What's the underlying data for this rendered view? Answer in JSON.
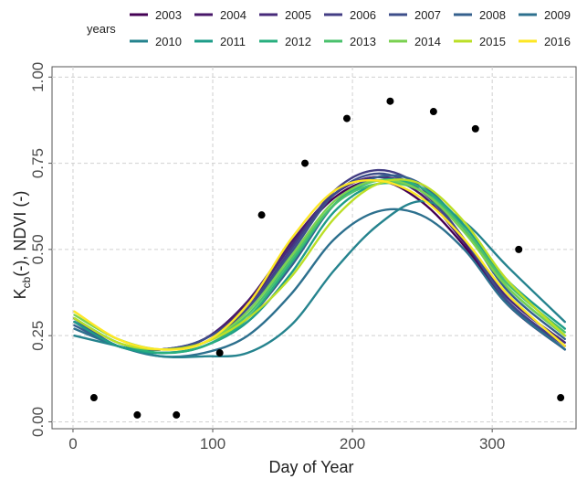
{
  "chart_data": {
    "type": "line",
    "xlabel": "Day of Year",
    "ylabel_main": "K",
    "ylabel_sub": "cb",
    "ylabel_rest": "(-), NDVI (-)",
    "xlim": [
      -15,
      360
    ],
    "ylim": [
      -0.02,
      1.03
    ],
    "xticks": [
      0,
      100,
      200,
      300
    ],
    "yticks": [
      0.0,
      0.25,
      0.5,
      0.75,
      1.0
    ],
    "ytick_labels": [
      "0.00",
      "0.25",
      "0.50",
      "0.75",
      "1.00"
    ],
    "grid": true,
    "legend": {
      "title": "years",
      "position": "top"
    },
    "scatter_points": [
      {
        "x": 15,
        "y": 0.07
      },
      {
        "x": 46,
        "y": 0.02
      },
      {
        "x": 74,
        "y": 0.02
      },
      {
        "x": 105,
        "y": 0.2
      },
      {
        "x": 135,
        "y": 0.6
      },
      {
        "x": 166,
        "y": 0.75
      },
      {
        "x": 196,
        "y": 0.88
      },
      {
        "x": 227,
        "y": 0.93
      },
      {
        "x": 258,
        "y": 0.9
      },
      {
        "x": 288,
        "y": 0.85
      },
      {
        "x": 319,
        "y": 0.5
      },
      {
        "x": 349,
        "y": 0.07
      }
    ],
    "series": [
      {
        "name": "2003",
        "color": "#440154",
        "values": [
          0.3,
          0.22,
          0.21,
          0.24,
          0.34,
          0.51,
          0.65,
          0.7,
          0.64,
          0.51,
          0.34,
          0.21
        ]
      },
      {
        "name": "2004",
        "color": "#481769",
        "values": [
          0.29,
          0.22,
          0.21,
          0.24,
          0.35,
          0.52,
          0.66,
          0.71,
          0.66,
          0.52,
          0.35,
          0.22
        ]
      },
      {
        "name": "2005",
        "color": "#472A7A",
        "values": [
          0.3,
          0.22,
          0.21,
          0.24,
          0.34,
          0.51,
          0.66,
          0.71,
          0.67,
          0.53,
          0.36,
          0.23
        ]
      },
      {
        "name": "2006",
        "color": "#433D84",
        "values": [
          0.3,
          0.22,
          0.21,
          0.23,
          0.33,
          0.5,
          0.67,
          0.73,
          0.68,
          0.53,
          0.35,
          0.22
        ]
      },
      {
        "name": "2007",
        "color": "#3D4E8A",
        "values": [
          0.29,
          0.22,
          0.21,
          0.24,
          0.33,
          0.49,
          0.66,
          0.72,
          0.67,
          0.53,
          0.35,
          0.21
        ]
      },
      {
        "name": "2008",
        "color": "#35608D",
        "values": [
          0.28,
          0.22,
          0.2,
          0.22,
          0.3,
          0.45,
          0.63,
          0.71,
          0.69,
          0.56,
          0.38,
          0.24
        ]
      },
      {
        "name": "2009",
        "color": "#2D708E",
        "values": [
          0.27,
          0.22,
          0.19,
          0.2,
          0.25,
          0.37,
          0.53,
          0.61,
          0.6,
          0.5,
          0.34,
          0.21
        ]
      },
      {
        "name": "2010",
        "color": "#25838E",
        "values": [
          0.25,
          0.22,
          0.19,
          0.19,
          0.2,
          0.28,
          0.44,
          0.57,
          0.64,
          0.58,
          0.45,
          0.29
        ]
      },
      {
        "name": "2011",
        "color": "#1E9C89",
        "values": [
          0.29,
          0.22,
          0.2,
          0.22,
          0.29,
          0.43,
          0.61,
          0.69,
          0.68,
          0.57,
          0.41,
          0.27
        ]
      },
      {
        "name": "2012",
        "color": "#29AF7F",
        "values": [
          0.3,
          0.23,
          0.2,
          0.22,
          0.3,
          0.46,
          0.63,
          0.7,
          0.68,
          0.56,
          0.39,
          0.25
        ]
      },
      {
        "name": "2013",
        "color": "#4AC16D",
        "values": [
          0.3,
          0.23,
          0.21,
          0.23,
          0.31,
          0.47,
          0.63,
          0.69,
          0.67,
          0.56,
          0.4,
          0.26
        ]
      },
      {
        "name": "2014",
        "color": "#7AD151",
        "values": [
          0.31,
          0.24,
          0.21,
          0.23,
          0.32,
          0.48,
          0.64,
          0.7,
          0.67,
          0.55,
          0.39,
          0.25
        ]
      },
      {
        "name": "2015",
        "color": "#BBDF27",
        "values": [
          0.3,
          0.23,
          0.21,
          0.23,
          0.3,
          0.42,
          0.59,
          0.69,
          0.69,
          0.58,
          0.41,
          0.25
        ]
      },
      {
        "name": "2016",
        "color": "#FDE725",
        "values": [
          0.32,
          0.24,
          0.21,
          0.23,
          0.34,
          0.53,
          0.67,
          0.7,
          0.65,
          0.53,
          0.37,
          0.22
        ]
      }
    ],
    "series_x": [
      1,
      32,
      63,
      94,
      125,
      156,
      187,
      218,
      249,
      280,
      311,
      352
    ]
  }
}
